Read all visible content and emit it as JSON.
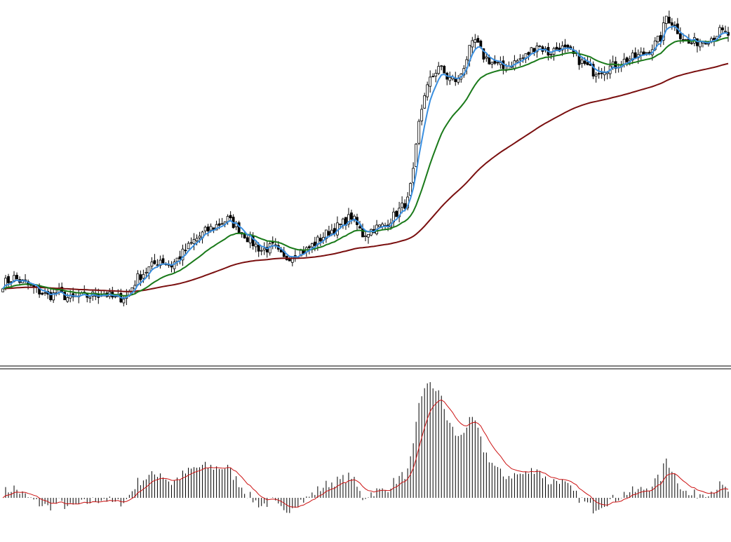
{
  "chart_data": [
    {
      "type": "candlestick",
      "title": "",
      "xlabel": "",
      "ylabel": "",
      "grid": false,
      "legend": "none",
      "ylim": [
        0,
        100
      ],
      "ma_periods": [
        5,
        21,
        89
      ],
      "colors": {
        "candle": "#000000",
        "ma_fast": "#3a8fe0",
        "ma_mid": "#1a7a1a",
        "ma_slow": "#7a0f0f"
      },
      "close_anchors": [
        [
          0,
          10
        ],
        [
          4,
          12
        ],
        [
          8,
          10
        ],
        [
          12,
          8
        ],
        [
          16,
          6
        ],
        [
          20,
          7
        ],
        [
          24,
          5
        ],
        [
          30,
          6
        ],
        [
          36,
          7
        ],
        [
          40,
          5
        ],
        [
          44,
          6
        ],
        [
          48,
          12
        ],
        [
          52,
          15
        ],
        [
          56,
          18
        ],
        [
          60,
          16
        ],
        [
          64,
          20
        ],
        [
          68,
          24
        ],
        [
          72,
          27
        ],
        [
          76,
          29
        ],
        [
          80,
          31
        ],
        [
          84,
          28
        ],
        [
          88,
          24
        ],
        [
          92,
          21
        ],
        [
          96,
          22
        ],
        [
          100,
          18
        ],
        [
          104,
          20
        ],
        [
          108,
          21
        ],
        [
          112,
          24
        ],
        [
          116,
          27
        ],
        [
          120,
          29
        ],
        [
          124,
          32
        ],
        [
          128,
          26
        ],
        [
          132,
          28
        ],
        [
          136,
          29
        ],
        [
          140,
          33
        ],
        [
          144,
          37
        ],
        [
          146,
          46
        ],
        [
          148,
          62
        ],
        [
          150,
          72
        ],
        [
          152,
          76
        ],
        [
          155,
          81
        ],
        [
          158,
          77
        ],
        [
          162,
          76
        ],
        [
          166,
          86
        ],
        [
          168,
          89
        ],
        [
          171,
          84
        ],
        [
          174,
          82
        ],
        [
          178,
          80
        ],
        [
          182,
          82
        ],
        [
          186,
          84
        ],
        [
          190,
          88
        ],
        [
          194,
          85
        ],
        [
          198,
          87
        ],
        [
          202,
          85
        ],
        [
          206,
          82
        ],
        [
          210,
          79
        ],
        [
          214,
          80
        ],
        [
          218,
          81
        ],
        [
          222,
          83
        ],
        [
          226,
          84
        ],
        [
          230,
          86
        ],
        [
          234,
          90
        ],
        [
          236,
          97
        ],
        [
          238,
          95
        ],
        [
          241,
          91
        ],
        [
          244,
          88
        ],
        [
          248,
          89
        ],
        [
          252,
          90
        ],
        [
          255,
          92
        ],
        [
          258,
          91
        ]
      ],
      "candle_count": 259
    },
    {
      "type": "histogram",
      "title": "",
      "xlabel": "",
      "ylabel": "",
      "grid": false,
      "signal_period": 9,
      "colors": {
        "bar": "#000000",
        "signal": "#cc1111"
      }
    }
  ]
}
